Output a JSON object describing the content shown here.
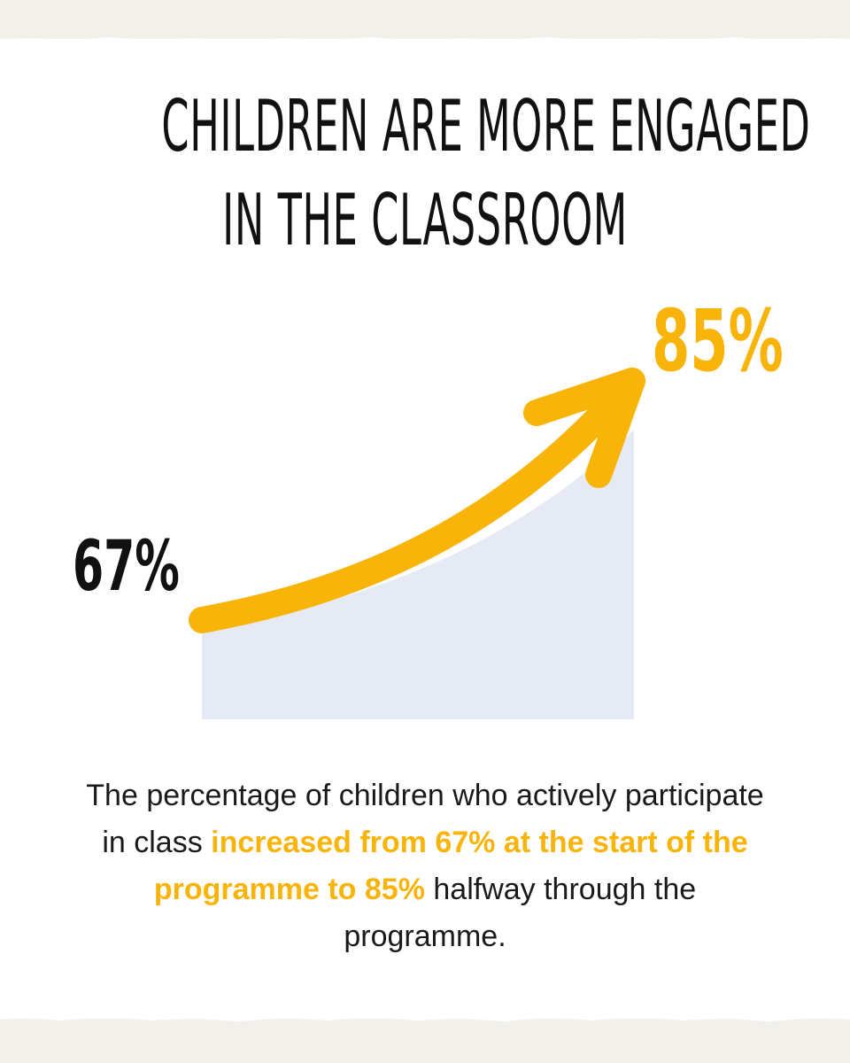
{
  "title": {
    "line1": "CHILDREN ARE MORE ENGAGED",
    "line2": "IN THE CLASSROOM"
  },
  "caption": {
    "text_before": "The percentage of children who actively participate in class ",
    "highlight": "increased from 67% at the start of the programme to 85%",
    "text_after": " halfway through the programme."
  },
  "colors": {
    "accent": "#f9b409",
    "area_fill": "#e6eaf4",
    "text": "#111111",
    "background": "#ffffff",
    "page_border": "#f2f0eb"
  },
  "chart_data": {
    "type": "area",
    "x": [
      "start of the programme",
      "halfway through the programme"
    ],
    "values": [
      67,
      85
    ],
    "value_labels": [
      "67%",
      "85%"
    ],
    "trend": "increasing",
    "ylim": [
      0,
      100
    ]
  }
}
